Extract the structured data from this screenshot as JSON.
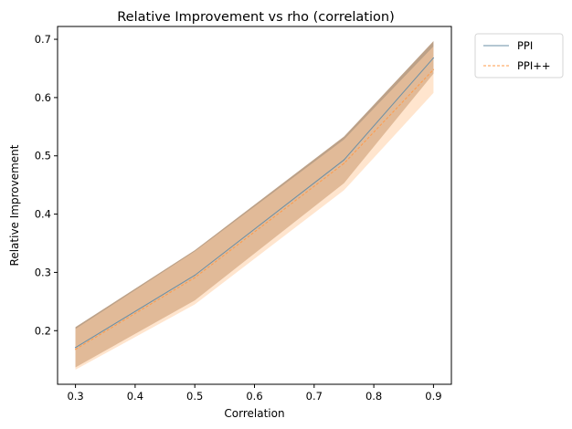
{
  "chart_data": {
    "type": "line",
    "title": "Relative Improvement vs rho (correlation)",
    "xlabel": "Correlation",
    "ylabel": "Relative Improvement",
    "xlim": [
      0.27,
      0.93
    ],
    "ylim": [
      0.108,
      0.722
    ],
    "xticks": [
      0.3,
      0.4,
      0.5,
      0.6,
      0.7,
      0.8,
      0.9
    ],
    "xtick_labels": [
      "0.3",
      "0.4",
      "0.5",
      "0.6",
      "0.7",
      "0.8",
      "0.9"
    ],
    "yticks": [
      0.2,
      0.3,
      0.4,
      0.5,
      0.6,
      0.7
    ],
    "ytick_labels": [
      "0.2",
      "0.3",
      "0.4",
      "0.5",
      "0.6",
      "0.7"
    ],
    "grid": false,
    "legend_position": "outside top-right",
    "x": [
      0.3,
      0.5,
      0.75,
      0.9
    ],
    "series": [
      {
        "name": "PPI",
        "color": "#6a8fa6",
        "style": "solid",
        "values": [
          0.171,
          0.295,
          0.493,
          0.668
        ],
        "band_lower": [
          0.137,
          0.252,
          0.453,
          0.641
        ],
        "band_upper": [
          0.206,
          0.338,
          0.533,
          0.697
        ],
        "band_color": "#b89c82"
      },
      {
        "name": "PPI++",
        "color": "#ff9b4a",
        "style": "dashed",
        "values": [
          0.168,
          0.291,
          0.487,
          0.648
        ],
        "band_lower": [
          0.133,
          0.245,
          0.441,
          0.608
        ],
        "band_upper": [
          0.203,
          0.336,
          0.528,
          0.688
        ],
        "band_color": "#ffcfa6"
      }
    ]
  }
}
